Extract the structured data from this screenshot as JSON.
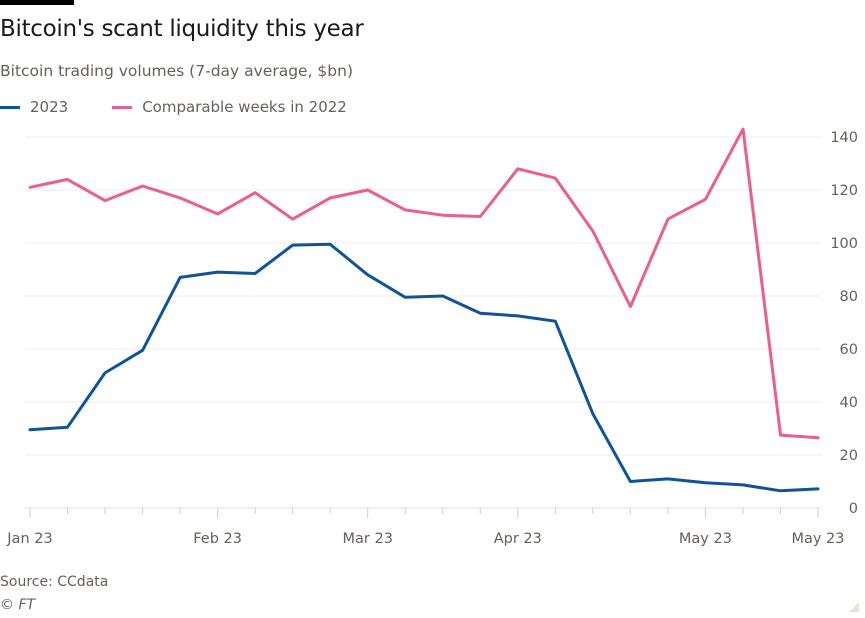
{
  "header": {
    "title": "Bitcoin's scant liquidity this year",
    "subtitle": "Bitcoin trading volumes (7-day average, $bn)"
  },
  "legend": [
    {
      "label": "2023",
      "color": "#0f5499"
    },
    {
      "label": "Comparable weeks in 2022",
      "color": "#eb5e8d"
    }
  ],
  "footer": {
    "source": "Source: CCdata",
    "credit": "© FT"
  },
  "chart_data": {
    "type": "line",
    "title": "Bitcoin's scant liquidity this year",
    "subtitle": "Bitcoin trading volumes (7-day average, $bn)",
    "xlabel": "",
    "ylabel": "",
    "x": [
      0,
      1,
      2,
      3,
      4,
      5,
      6,
      7,
      8,
      9,
      10,
      11,
      12,
      13,
      14,
      15,
      16,
      17,
      18,
      19,
      20,
      21
    ],
    "x_tick_labels": [
      {
        "index": 0,
        "label": "Jan 23"
      },
      {
        "index": 5,
        "label": "Feb 23"
      },
      {
        "index": 9,
        "label": "Mar 23"
      },
      {
        "index": 13,
        "label": "Apr 23"
      },
      {
        "index": 18,
        "label": "May 23"
      },
      {
        "index": 21,
        "label": "May 23"
      }
    ],
    "ylim": [
      0,
      140
    ],
    "y_ticks": [
      0,
      20,
      40,
      60,
      80,
      100,
      120,
      140
    ],
    "y_axis_side": "right",
    "grid": true,
    "legend_position": "top-left",
    "series": [
      {
        "name": "2023",
        "color": "#0f5499",
        "values": [
          29.5,
          30.5,
          51,
          59.5,
          87,
          89,
          88.5,
          99.2,
          99.5,
          88,
          79.5,
          80,
          73.5,
          72.5,
          70.5,
          35.5,
          10,
          11,
          9.5,
          8.7,
          6.5,
          7.2
        ]
      },
      {
        "name": "Comparable weeks in 2022",
        "color": "#eb5e8d",
        "values": [
          121,
          124,
          116,
          121.5,
          117,
          111,
          119,
          109,
          117,
          120,
          112.5,
          110.5,
          110,
          128,
          124.5,
          104.5,
          76,
          109,
          116.5,
          143,
          27.5,
          26.5
        ]
      }
    ]
  }
}
